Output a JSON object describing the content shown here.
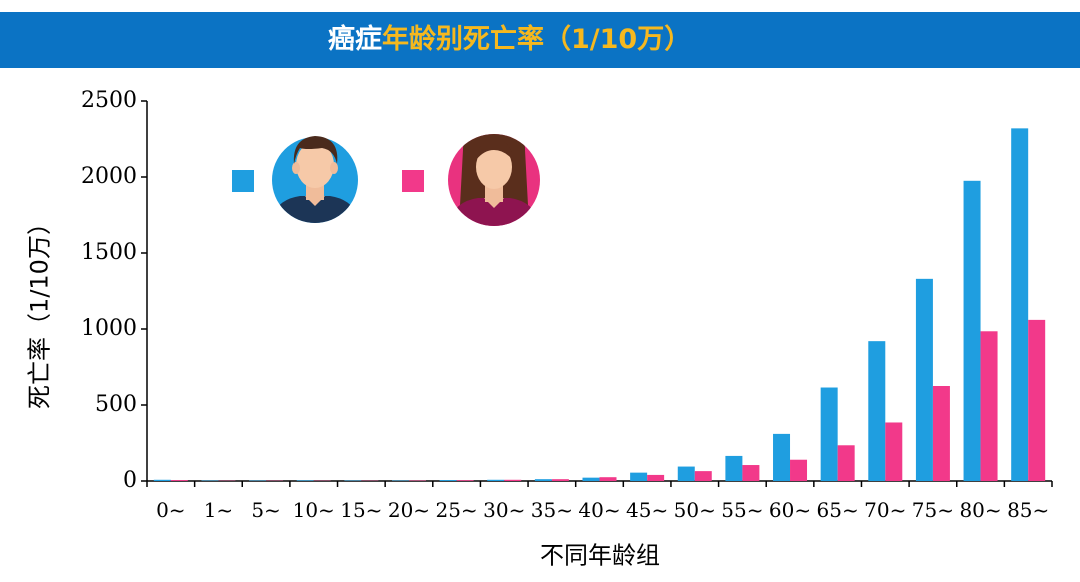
{
  "header": {
    "title_part1": "癌症",
    "title_part2": "年龄别死亡率（1/10万）",
    "bg_color": "#0b73c4",
    "title_highlight_color": "#f6b81e"
  },
  "legend": [
    {
      "series": "male",
      "icon": "male-avatar-icon",
      "color": "#1f9ee0"
    },
    {
      "series": "female",
      "icon": "female-avatar-icon",
      "color": "#f2398a"
    }
  ],
  "chart_data": {
    "type": "bar",
    "title": "癌症年龄别死亡率（1/10万）",
    "xlabel": "不同年龄组",
    "ylabel": "死亡率（1/10万）",
    "ylim": [
      0,
      2500
    ],
    "yticks": [
      0,
      500,
      1000,
      1500,
      2000,
      2500
    ],
    "categories": [
      "0~",
      "1~",
      "5~",
      "10~",
      "15~",
      "20~",
      "25~",
      "30~",
      "35~",
      "40~",
      "45~",
      "50~",
      "55~",
      "60~",
      "65~",
      "70~",
      "75~",
      "80~",
      "85~"
    ],
    "series": [
      {
        "color": "#1f9ee0",
        "values": [
          8,
          3,
          3,
          4,
          3,
          3,
          6,
          8,
          12,
          22,
          55,
          95,
          165,
          310,
          615,
          920,
          1330,
          1975,
          2320
        ]
      },
      {
        "color": "#f2398a",
        "values": [
          6,
          2,
          2,
          2,
          2,
          3,
          5,
          8,
          12,
          25,
          40,
          65,
          105,
          140,
          235,
          385,
          625,
          985,
          1060
        ]
      }
    ],
    "grid": false,
    "legend_position": "top-left"
  }
}
